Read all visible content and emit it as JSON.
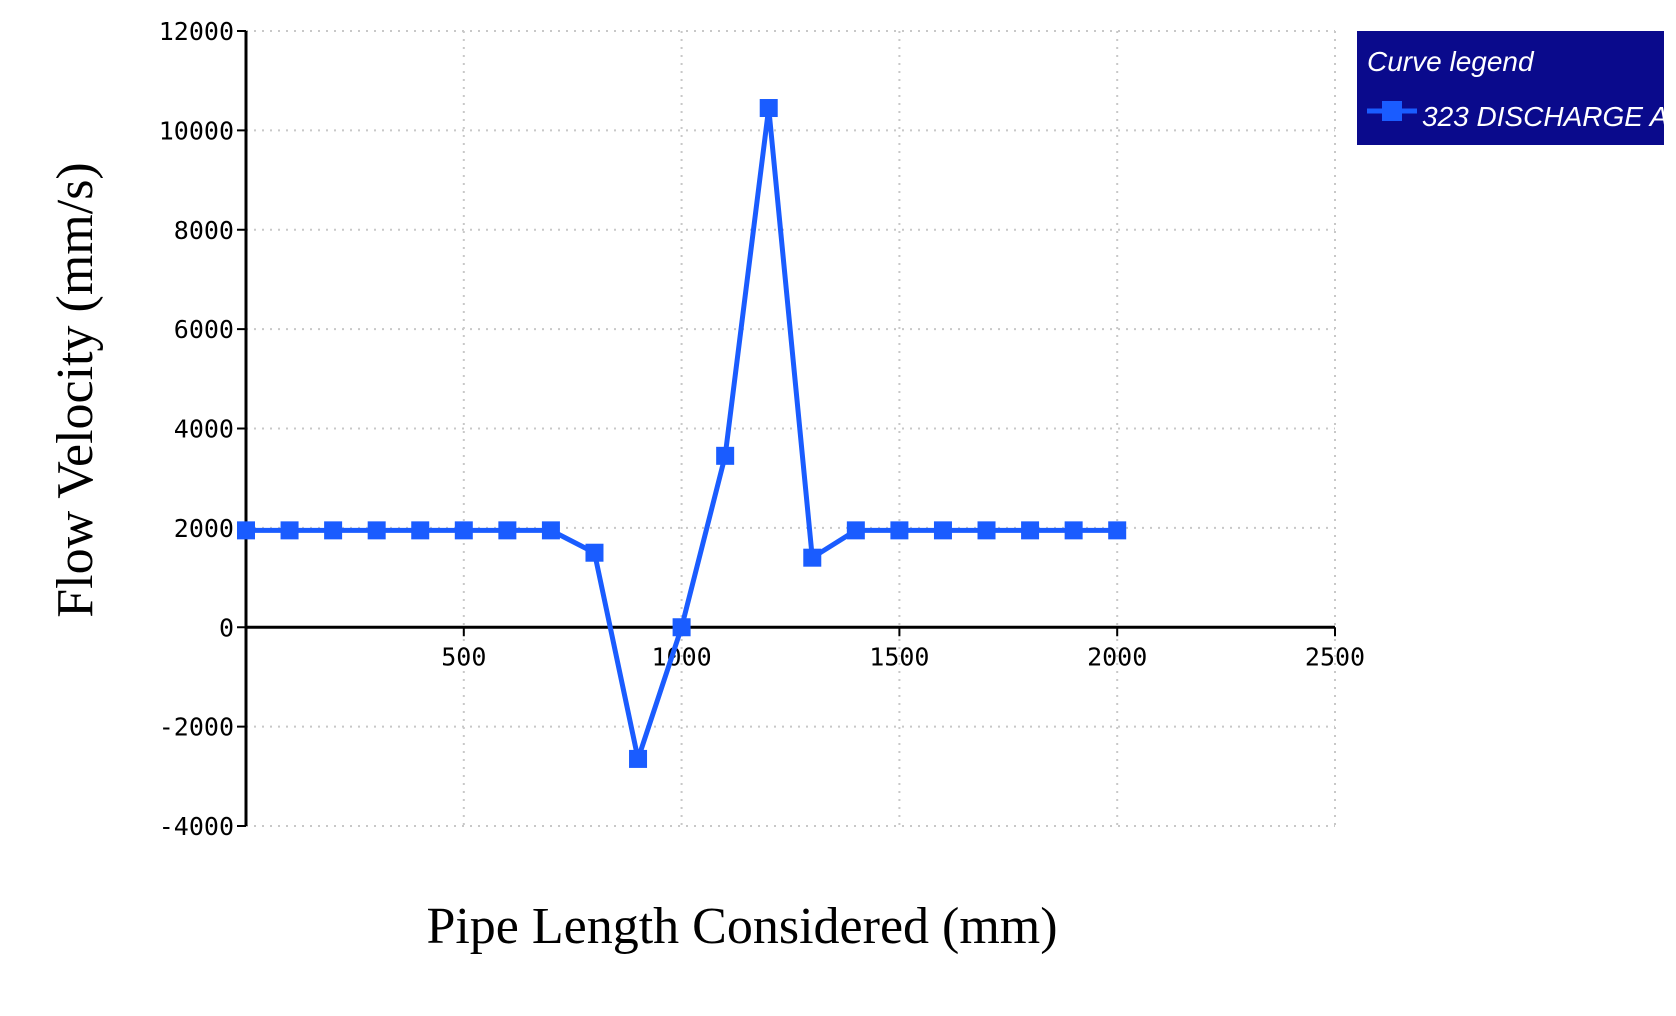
{
  "chart_data": {
    "type": "line",
    "title": "",
    "xlabel": "Pipe Length Considered (mm)",
    "ylabel": "Flow Velocity (mm/s)",
    "xlim": [
      0,
      2500
    ],
    "ylim": [
      -4000,
      12000
    ],
    "x_ticks": [
      "500",
      "1000",
      "1500",
      "2000",
      "2500"
    ],
    "y_ticks": [
      "12000",
      "10000",
      "8000",
      "6000",
      "4000",
      "2000",
      "0",
      "-2000",
      "-4000"
    ],
    "x_tick_values": [
      500,
      1000,
      1500,
      2000,
      2500
    ],
    "y_tick_values": [
      12000,
      10000,
      8000,
      6000,
      4000,
      2000,
      0,
      -2000,
      -4000
    ],
    "grid": true,
    "legend": {
      "title": "Curve legend",
      "placement": "top-right, outside plot"
    },
    "series": [
      {
        "name": "323 DISCHARGE A",
        "color": "#1a5cff",
        "marker": "square",
        "x": [
          0,
          100,
          200,
          300,
          400,
          500,
          600,
          700,
          800,
          900,
          1000,
          1100,
          1200,
          1300,
          1400,
          1500,
          1600,
          1700,
          1800,
          1900,
          2000
        ],
        "y": [
          1950,
          1950,
          1950,
          1950,
          1950,
          1950,
          1950,
          1950,
          1500,
          -2650,
          0,
          3450,
          10450,
          1400,
          1950,
          1950,
          1950,
          1950,
          1950,
          1950,
          1950
        ]
      }
    ]
  },
  "colors": {
    "series": "#1a5cff",
    "legend_bg": "#0a0a8c",
    "grid": "#c8c8c8",
    "axis": "#000000"
  }
}
